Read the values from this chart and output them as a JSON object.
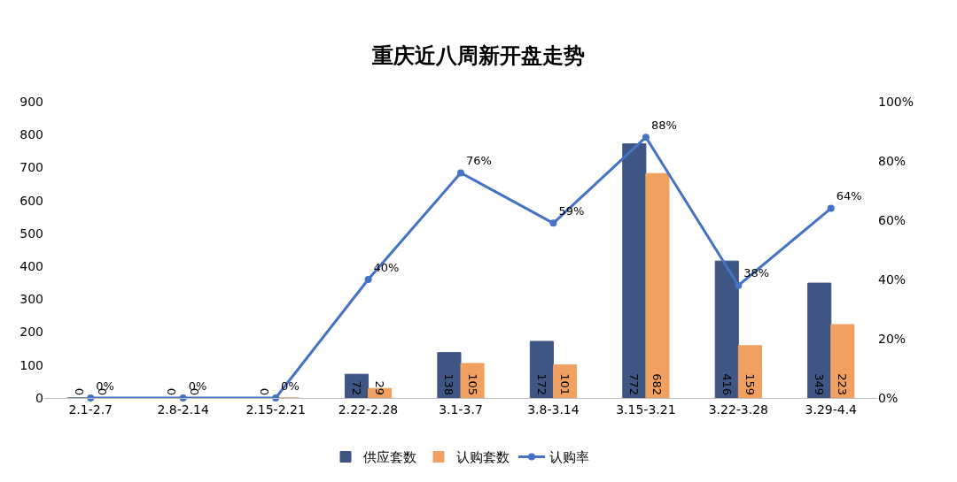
{
  "chart_data": {
    "type": "bar",
    "title": "重庆近八周新开盘走势",
    "categories": [
      "2.1-2.7",
      "2.8-2.14",
      "2.15-2.21",
      "2.22-2.28",
      "3.1-3.7",
      "3.8-3.14",
      "3.15-3.21",
      "3.22-3.28",
      "3.29-4.4"
    ],
    "series": [
      {
        "name": "供应套数",
        "color": "#3f5584",
        "values": [
          0,
          0,
          0,
          72,
          138,
          172,
          772,
          416,
          349
        ],
        "value_labels": [
          "0",
          "0",
          "0",
          "72",
          "138",
          "172",
          "772",
          "416",
          "349"
        ]
      },
      {
        "name": "认购套数",
        "color": "#f0a060",
        "values": [
          0,
          0,
          0,
          29,
          105,
          101,
          682,
          159,
          223
        ],
        "value_labels": [
          "0",
          "0",
          null,
          "29",
          "105",
          "101",
          "682",
          "159",
          "223"
        ]
      },
      {
        "name": "认购率",
        "type": "line",
        "axis": "y2",
        "color": "#4472c4",
        "values": [
          0,
          0,
          0,
          40,
          76,
          59,
          88,
          38,
          64
        ],
        "value_labels": [
          "0%",
          "0%",
          "0%",
          "40%",
          "76%",
          "59%",
          "88%",
          "38%",
          "64%"
        ]
      }
    ],
    "ylim": [
      0,
      900
    ],
    "yticks": [
      0,
      100,
      200,
      300,
      400,
      500,
      600,
      700,
      800,
      900
    ],
    "y2lim": [
      0,
      100
    ],
    "y2ticks": [
      {
        "value": 0,
        "label": "0%"
      },
      {
        "value": 20,
        "label": "20%"
      },
      {
        "value": 40,
        "label": "40%"
      },
      {
        "value": 60,
        "label": "60%"
      },
      {
        "value": 80,
        "label": "80%"
      },
      {
        "value": 100,
        "label": "100%"
      }
    ],
    "marker": "circle",
    "line_style": "solid",
    "grid": false,
    "legend": "bottom"
  }
}
